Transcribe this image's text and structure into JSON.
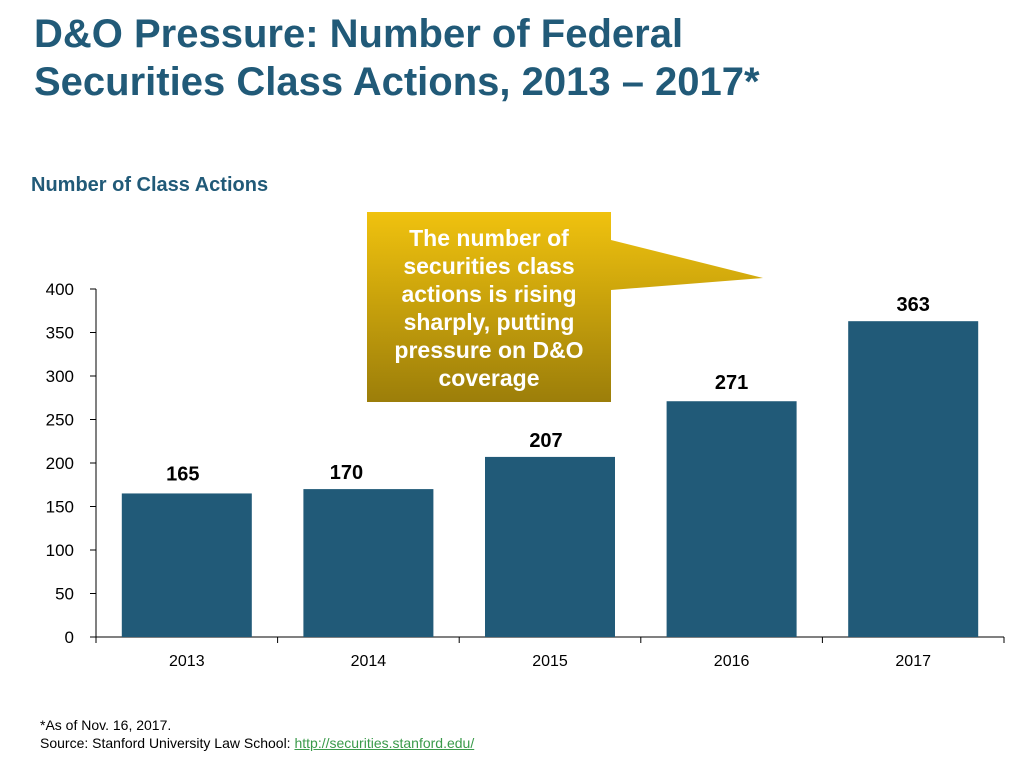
{
  "slide": {
    "title": "D&O Pressure: Number of Federal\nSecurities Class Actions, 2013 – 2017*",
    "subtitle": "Number of Class Actions"
  },
  "callout": {
    "text": "The number of\nsecurities class\nactions is rising\nsharply, putting\npressure on D&O\ncoverage"
  },
  "footnote": {
    "as_of": "*As of Nov. 16, 2017.",
    "source_prefix": "Source: Stanford University Law School:",
    "source_link": "http://securities.stanford.edu/"
  },
  "colors": {
    "bar": "#215a78",
    "title": "#215a78",
    "callout_top": "#f0c20e",
    "callout_bottom": "#9c7e0a",
    "link": "#3a9a4a"
  },
  "chart_data": {
    "type": "bar",
    "title": "Number of Class Actions",
    "categories": [
      "2013",
      "2014",
      "2015",
      "2016",
      "2017"
    ],
    "values": [
      165,
      170,
      207,
      271,
      363
    ],
    "data_labels": [
      "165",
      "170",
      "207",
      "271",
      "363"
    ],
    "ylim": [
      0,
      400
    ],
    "yticks": [
      0,
      50,
      100,
      150,
      200,
      250,
      300,
      350,
      400
    ],
    "xlabel": "",
    "ylabel": "",
    "grid": false,
    "legend": "none"
  }
}
